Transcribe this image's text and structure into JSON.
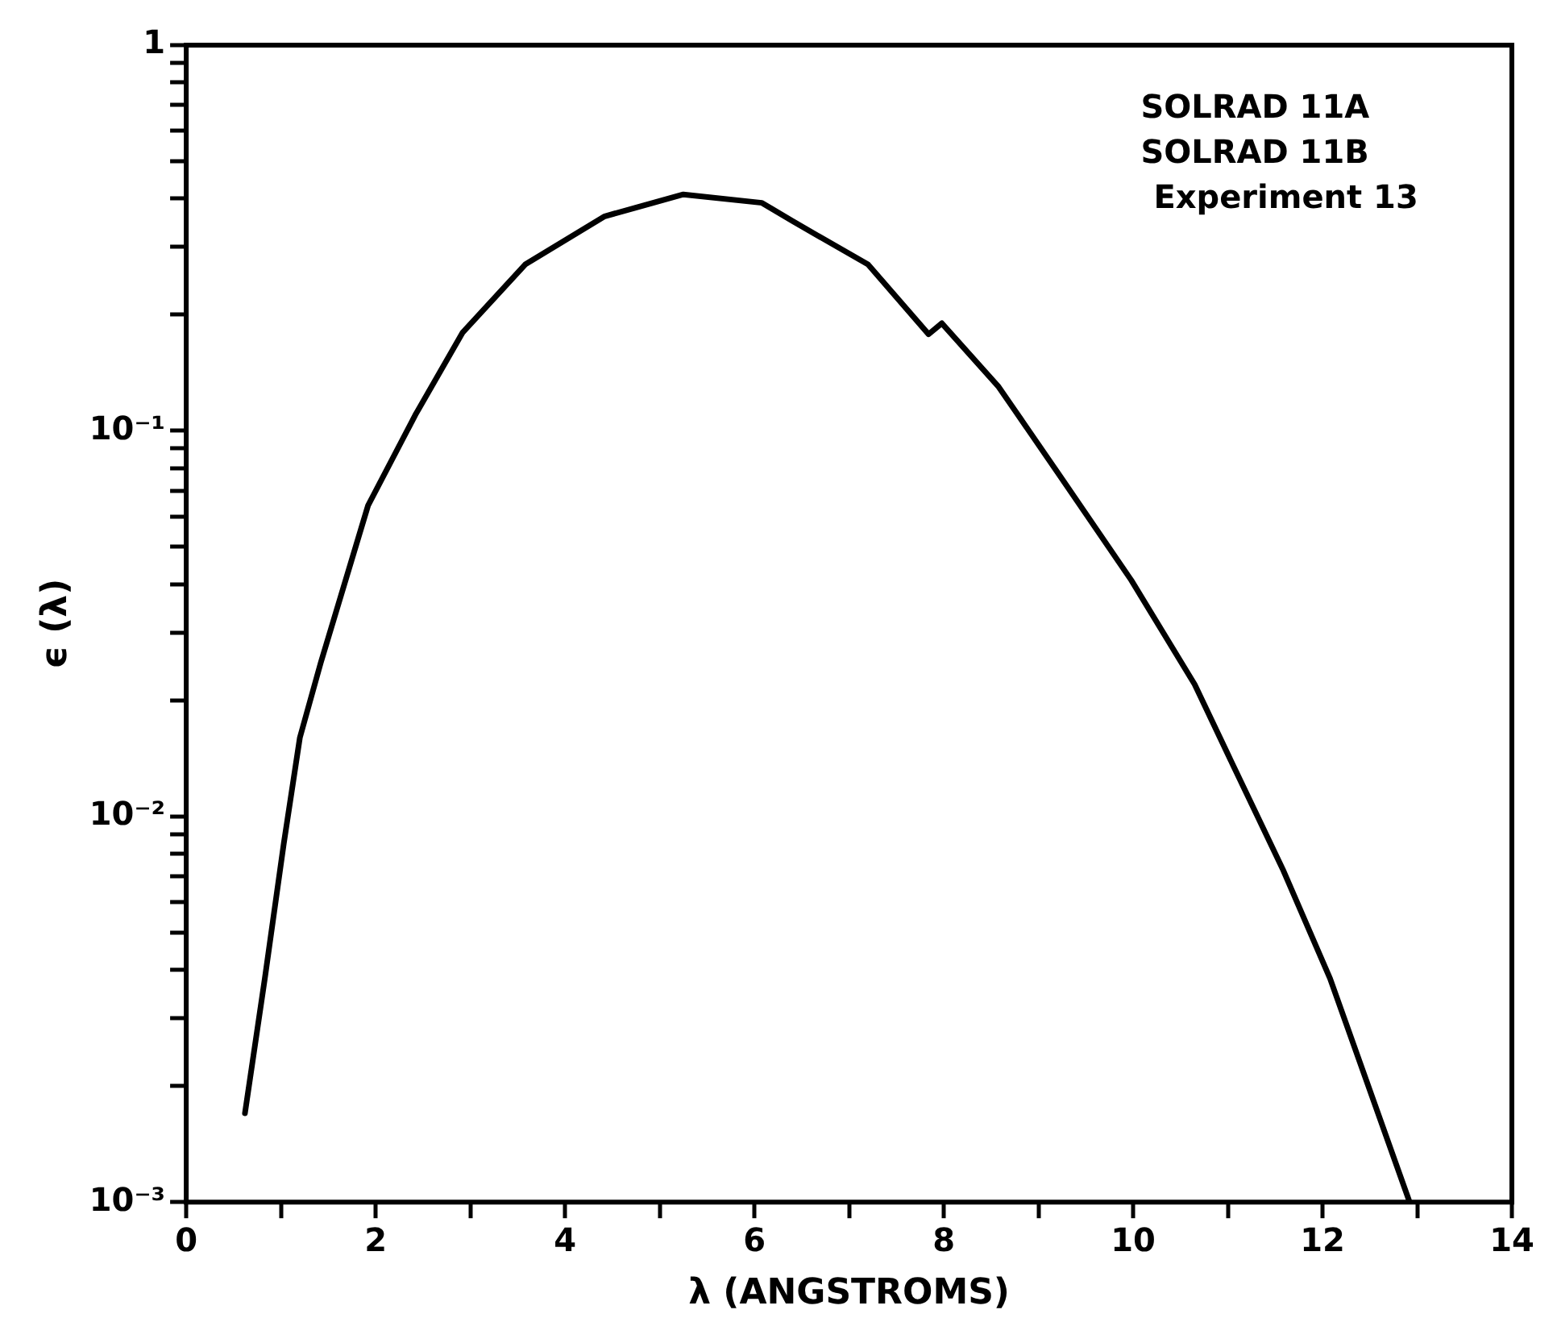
{
  "chart_data": {
    "type": "line",
    "xlabel": "λ (ANGSTROMS)",
    "ylabel": "ϵ (λ)",
    "log": "y",
    "grid": false,
    "legend": false,
    "marker": "none",
    "line_style": "solid",
    "annotations": [
      "SOLRAD 11A",
      "SOLRAD 11B",
      "Experiment 13"
    ],
    "xlim": [
      0,
      14
    ],
    "xticks": [
      0,
      {
        "value": 1,
        "label": null
      },
      2,
      {
        "value": 3,
        "label": null
      },
      4,
      {
        "value": 5,
        "label": null
      },
      6,
      {
        "value": 7,
        "label": null
      },
      8,
      {
        "value": 9,
        "label": null
      },
      10,
      {
        "value": 11,
        "label": null
      },
      12,
      {
        "value": 13,
        "label": null
      },
      14
    ],
    "ylim": [
      0.001,
      1
    ],
    "yticks": [
      {
        "value": 0.001,
        "label": "10⁻³"
      },
      {
        "value": 0.002,
        "label": null
      },
      {
        "value": 0.003,
        "label": null
      },
      {
        "value": 0.004,
        "label": null
      },
      {
        "value": 0.005,
        "label": null
      },
      {
        "value": 0.006,
        "label": null
      },
      {
        "value": 0.007,
        "label": null
      },
      {
        "value": 0.008,
        "label": null
      },
      {
        "value": 0.009,
        "label": null
      },
      {
        "value": 0.01,
        "label": "10⁻²"
      },
      {
        "value": 0.02,
        "label": null
      },
      {
        "value": 0.03,
        "label": null
      },
      {
        "value": 0.04,
        "label": null
      },
      {
        "value": 0.05,
        "label": null
      },
      {
        "value": 0.06,
        "label": null
      },
      {
        "value": 0.07,
        "label": null
      },
      {
        "value": 0.08,
        "label": null
      },
      {
        "value": 0.09,
        "label": null
      },
      {
        "value": 0.1,
        "label": "10⁻¹"
      },
      {
        "value": 0.2,
        "label": null
      },
      {
        "value": 0.3,
        "label": null
      },
      {
        "value": 0.4,
        "label": null
      },
      {
        "value": 0.5,
        "label": null
      },
      {
        "value": 0.6,
        "label": null
      },
      {
        "value": 0.7,
        "label": null
      },
      {
        "value": 0.8,
        "label": null
      },
      {
        "value": 0.9,
        "label": null
      },
      1
    ],
    "series": [
      {
        "color": "#000000",
        "x": [
          0.62,
          0.83,
          1.03,
          1.2,
          1.42,
          1.92,
          2.42,
          2.92,
          3.58,
          4.42,
          5.25,
          6.08,
          6.4,
          7.2,
          7.84,
          7.98,
          8.58,
          9.25,
          9.98,
          10.65,
          11.03,
          11.58,
          12.08,
          12.92
        ],
        "values": [
          0.0017,
          0.0038,
          0.0085,
          0.016,
          0.025,
          0.064,
          0.11,
          0.18,
          0.27,
          0.36,
          0.41,
          0.39,
          0.35,
          0.27,
          0.178,
          0.19,
          0.13,
          0.075,
          0.041,
          0.022,
          0.014,
          0.0073,
          0.0038,
          0.001
        ]
      }
    ]
  }
}
